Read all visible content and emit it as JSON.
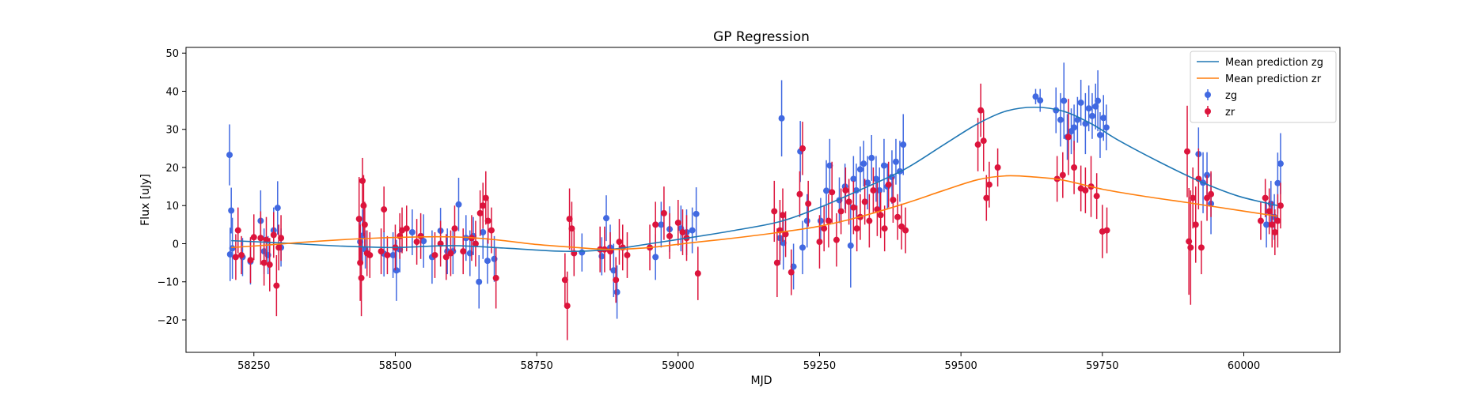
{
  "chart_data": {
    "type": "scatter",
    "title": "GP Regression",
    "xlabel": "MJD",
    "ylabel": "Flux [uJy]",
    "xlim": [
      58130,
      60170
    ],
    "ylim": [
      -28.5,
      51.5
    ],
    "xticks": [
      58250,
      58500,
      58750,
      59000,
      59250,
      59500,
      59750,
      60000
    ],
    "yticks": [
      -20,
      -10,
      0,
      10,
      20,
      30,
      40,
      50
    ],
    "legend_position": "top-right",
    "lines": [
      {
        "name": "Mean prediction zg",
        "color": "#1f77b4",
        "points": [
          [
            58210,
            0.8
          ],
          [
            58300,
            0.2
          ],
          [
            58400,
            -0.6
          ],
          [
            58500,
            -1.0
          ],
          [
            58600,
            -0.5
          ],
          [
            58700,
            -1.2
          ],
          [
            58800,
            -2.0
          ],
          [
            58880,
            -1.5
          ],
          [
            58950,
            0.0
          ],
          [
            59030,
            1.8
          ],
          [
            59100,
            3.5
          ],
          [
            59180,
            5.8
          ],
          [
            59250,
            9.5
          ],
          [
            59320,
            14.0
          ],
          [
            59400,
            19.5
          ],
          [
            59470,
            26.0
          ],
          [
            59530,
            31.5
          ],
          [
            59580,
            34.8
          ],
          [
            59630,
            35.8
          ],
          [
            59680,
            34.8
          ],
          [
            59730,
            31.5
          ],
          [
            59780,
            27.0
          ],
          [
            59850,
            21.5
          ],
          [
            59920,
            16.5
          ],
          [
            59990,
            12.5
          ],
          [
            60060,
            10.0
          ]
        ]
      },
      {
        "name": "Mean prediction zr",
        "color": "#ff7f0e",
        "points": [
          [
            58210,
            -1.0
          ],
          [
            58260,
            -0.5
          ],
          [
            58320,
            0.2
          ],
          [
            58400,
            1.0
          ],
          [
            58470,
            1.5
          ],
          [
            58550,
            1.8
          ],
          [
            58620,
            1.7
          ],
          [
            58680,
            1.0
          ],
          [
            58750,
            -0.2
          ],
          [
            58820,
            -1.0
          ],
          [
            58880,
            -1.5
          ],
          [
            58950,
            -1.0
          ],
          [
            59020,
            0.2
          ],
          [
            59100,
            1.5
          ],
          [
            59180,
            3.0
          ],
          [
            59250,
            4.6
          ],
          [
            59320,
            7.0
          ],
          [
            59400,
            10.5
          ],
          [
            59470,
            14.0
          ],
          [
            59530,
            16.8
          ],
          [
            59580,
            17.8
          ],
          [
            59630,
            17.5
          ],
          [
            59680,
            16.7
          ],
          [
            59750,
            14.3
          ],
          [
            59830,
            12.3
          ],
          [
            59900,
            10.8
          ],
          [
            59980,
            9.0
          ],
          [
            60060,
            7.2
          ]
        ]
      }
    ],
    "series": [
      {
        "name": "zg",
        "color": "#4169e1",
        "x": [
          58207,
          58208,
          58210,
          58212,
          58230,
          58244,
          58262,
          58268,
          58275,
          58285,
          58292,
          58298,
          58438,
          58442,
          58447,
          58480,
          58496,
          58502,
          58508,
          58530,
          58550,
          58565,
          58580,
          58592,
          58602,
          58612,
          58625,
          58632,
          58638,
          58648,
          58655,
          58663,
          58675,
          58830,
          58865,
          58873,
          58880,
          58886,
          58892,
          58960,
          58970,
          58985,
          59005,
          59015,
          59025,
          59032,
          59180,
          59183,
          59186,
          59204,
          59216,
          59220,
          59228,
          59252,
          59262,
          59268,
          59285,
          59295,
          59305,
          59310,
          59315,
          59322,
          59328,
          59335,
          59342,
          59350,
          59356,
          59364,
          59370,
          59378,
          59385,
          59392,
          59398,
          59632,
          59640,
          59668,
          59676,
          59682,
          59688,
          59695,
          59700,
          59706,
          59712,
          59720,
          59726,
          59732,
          59738,
          59742,
          59746,
          59752,
          59757,
          59920,
          59928,
          59935,
          59942,
          60040,
          60048,
          60054,
          60060,
          60065
        ],
        "y": [
          23.3,
          -2.8,
          8.7,
          -1.2,
          -3.5,
          -4.7,
          6.0,
          -2.0,
          -3.0,
          3.5,
          9.4,
          -1.0,
          0.5,
          2.1,
          -1.5,
          -2.6,
          -3.0,
          -7.0,
          -1.5,
          3.0,
          0.7,
          -3.5,
          3.4,
          -2.0,
          -2.0,
          10.3,
          1.5,
          -2.5,
          2.0,
          -10.0,
          3.0,
          -4.5,
          -4.0,
          -2.3,
          -3.3,
          6.7,
          -1.0,
          -7.0,
          -12.7,
          -3.5,
          5.0,
          3.8,
          4.0,
          3.0,
          3.5,
          7.8,
          1.5,
          32.9,
          0.2,
          -6.0,
          24.2,
          -1.0,
          6.0,
          6.0,
          13.9,
          20.5,
          11.4,
          15.0,
          -0.5,
          17.0,
          14.0,
          19.5,
          21.0,
          16.0,
          22.5,
          17.0,
          14.0,
          20.5,
          15.0,
          17.5,
          21.5,
          19.0,
          26.0,
          38.6,
          37.6,
          35.0,
          32.5,
          37.5,
          28.0,
          29.5,
          30.5,
          32.5,
          37.0,
          31.5,
          35.5,
          33.5,
          36.0,
          37.5,
          28.5,
          33.0,
          30.5,
          23.5,
          16.0,
          18.0,
          10.5,
          5.0,
          10.5,
          7.0,
          15.9,
          21.0
        ],
        "err": [
          8,
          7,
          6,
          8,
          5,
          6,
          8,
          6,
          5,
          6,
          7,
          5,
          6,
          7,
          5,
          6,
          6,
          8,
          6,
          6,
          7,
          7,
          6,
          6,
          6,
          7,
          6,
          6,
          5,
          7,
          7,
          6,
          6,
          5,
          5,
          6,
          6,
          7,
          7,
          6,
          6,
          6,
          6,
          6,
          6,
          7,
          7,
          10,
          7,
          6,
          8,
          7,
          7,
          6,
          8,
          7,
          6,
          6,
          11,
          6,
          7,
          6,
          6,
          7,
          6,
          6,
          6,
          7,
          6,
          7,
          6,
          8,
          8,
          2,
          3,
          6,
          7,
          10,
          6,
          6,
          6,
          6,
          6,
          8,
          6,
          6,
          6,
          8,
          6,
          6,
          6,
          7,
          8,
          6,
          8,
          6,
          6,
          6,
          8,
          8
        ]
      },
      {
        "name": "zr",
        "color": "#dc143c",
        "x": [
          58218,
          58222,
          58228,
          58244,
          58250,
          58262,
          58268,
          58272,
          58278,
          58285,
          58290,
          58294,
          58298,
          58436,
          58438,
          58440,
          58442,
          58444,
          58446,
          58450,
          58455,
          58475,
          58480,
          58486,
          58500,
          58508,
          58512,
          58520,
          58538,
          58545,
          58570,
          58580,
          58590,
          58598,
          58605,
          58620,
          58635,
          58642,
          58650,
          58655,
          58660,
          58664,
          58670,
          58678,
          58800,
          58804,
          58808,
          58812,
          58816,
          58862,
          58870,
          58880,
          58890,
          58896,
          58902,
          58910,
          58950,
          58960,
          58975,
          58985,
          59000,
          59008,
          59015,
          59035,
          59170,
          59175,
          59180,
          59185,
          59190,
          59200,
          59215,
          59220,
          59230,
          59250,
          59258,
          59266,
          59272,
          59280,
          59288,
          59296,
          59302,
          59310,
          59316,
          59322,
          59330,
          59338,
          59345,
          59352,
          59358,
          59365,
          59372,
          59380,
          59388,
          59395,
          59402,
          59530,
          59535,
          59540,
          59545,
          59550,
          59565,
          59670,
          59680,
          59690,
          59700,
          59712,
          59720,
          59730,
          59740,
          59750,
          59758,
          59900,
          59903,
          59906,
          59910,
          59915,
          59920,
          59925,
          59935,
          59942,
          60030,
          60038,
          60045,
          60050,
          60055,
          60060,
          60065
        ],
        "y": [
          -3.5,
          3.5,
          -3.0,
          -4.3,
          1.7,
          1.5,
          -5.0,
          1.0,
          -5.5,
          2.3,
          -11.0,
          -1.0,
          1.5,
          6.5,
          -5.0,
          -9.0,
          16.5,
          10.0,
          5.0,
          -2.5,
          -3.0,
          -2.0,
          9.0,
          -3.0,
          -1.0,
          2.0,
          3.5,
          4.0,
          0.5,
          2.0,
          -3.0,
          0.0,
          -3.5,
          -2.5,
          4.0,
          -2.0,
          1.5,
          0.0,
          8.0,
          10.0,
          12.0,
          6.0,
          3.5,
          -9.0,
          -9.5,
          -16.3,
          6.5,
          4.0,
          -2.5,
          -1.5,
          -1.5,
          -2.0,
          -9.5,
          0.5,
          -1.0,
          -3.0,
          -1.0,
          5.0,
          8.0,
          2.0,
          5.5,
          3.0,
          1.5,
          -7.8,
          8.5,
          -5.0,
          3.5,
          7.5,
          2.5,
          -7.5,
          13.0,
          25.0,
          10.5,
          0.5,
          4.0,
          6.0,
          13.5,
          1.0,
          8.5,
          14.0,
          11.0,
          9.5,
          4.0,
          7.0,
          11.0,
          6.0,
          14.0,
          9.0,
          7.5,
          4.0,
          15.5,
          11.5,
          7.0,
          4.5,
          3.5,
          26.0,
          35.0,
          27.0,
          12.0,
          15.5,
          20.0,
          17.0,
          18.0,
          28.0,
          20.0,
          14.5,
          14.0,
          15.0,
          12.5,
          3.2,
          3.5,
          24.2,
          0.6,
          -1.0,
          12.0,
          5.0,
          17.0,
          -1.0,
          12.0,
          13.0,
          6.0,
          12.0,
          8.5,
          5.0,
          3.0,
          6.0,
          10.0
        ],
        "err": [
          6,
          6,
          5,
          6,
          6,
          7,
          6,
          6,
          7,
          6,
          8,
          6,
          6,
          11,
          10,
          10,
          6,
          8,
          6,
          6,
          6,
          6,
          6,
          5,
          6,
          6,
          6,
          6,
          6,
          6,
          6,
          6,
          6,
          6,
          6,
          6,
          6,
          6,
          6,
          6,
          7,
          6,
          6,
          8,
          7,
          9,
          8,
          7,
          6,
          6,
          6,
          5,
          6,
          6,
          6,
          6,
          6,
          6,
          7,
          6,
          6,
          6,
          6,
          7,
          8,
          9,
          8,
          7,
          6,
          6,
          6,
          7,
          6,
          7,
          6,
          7,
          8,
          7,
          6,
          6,
          6,
          7,
          6,
          6,
          6,
          7,
          6,
          7,
          6,
          6,
          6,
          6,
          6,
          6,
          6,
          7,
          7,
          8,
          6,
          6,
          5,
          6,
          6,
          10,
          7,
          6,
          6,
          8,
          6,
          7,
          6,
          12,
          14,
          15,
          8,
          10,
          8,
          7,
          6,
          6,
          5,
          5,
          6,
          6,
          6,
          7,
          6
        ]
      }
    ]
  }
}
